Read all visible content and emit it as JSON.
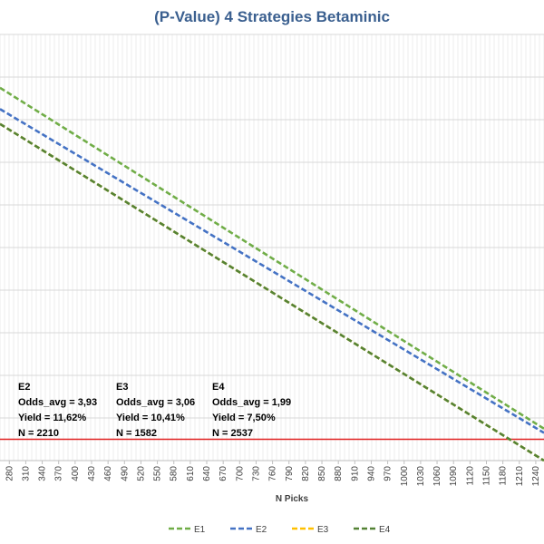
{
  "chart_data": {
    "type": "line",
    "title": "(P-Value) 4 Strategies Betaminic",
    "xlabel": "N Picks",
    "ylabel": "",
    "x_ticks": [
      280,
      310,
      340,
      370,
      400,
      430,
      460,
      490,
      520,
      550,
      580,
      610,
      640,
      670,
      700,
      730,
      760,
      790,
      820,
      850,
      880,
      910,
      940,
      970,
      1000,
      1030,
      1060,
      1090,
      1120,
      1150,
      1180,
      1210,
      1240
    ],
    "xlim": [
      263,
      1255
    ],
    "ylim": [
      0,
      1
    ],
    "threshold_line": {
      "y": 0.05,
      "color": "#e02020"
    },
    "series": [
      {
        "name": "E1",
        "color": "#70ad47",
        "x": [
          263,
          1255
        ],
        "y": [
          0.875,
          0.075
        ]
      },
      {
        "name": "E2",
        "color": "#4472c4",
        "x": [
          263,
          1255
        ],
        "y": [
          0.825,
          0.065
        ]
      },
      {
        "name": "E3",
        "color": "#ffc000",
        "x": [
          263,
          1255
        ],
        "y": [
          0.79,
          0.0
        ]
      },
      {
        "name": "E4",
        "color": "#548235",
        "x": [
          263,
          1255
        ],
        "y": [
          0.79,
          0.0
        ]
      }
    ],
    "stats": [
      {
        "id": "E2",
        "odds": "Odds_avg = 3,93",
        "yield": "Yield = 11,62%",
        "n": "N = 2210"
      },
      {
        "id": "E3",
        "odds": "Odds_avg = 3,06",
        "yield": "Yield = 10,41%",
        "n": "N = 1582"
      },
      {
        "id": "E4",
        "odds": "Odds_avg = 1,99",
        "yield": "Yield = 7,50%",
        "n": "N = 2537"
      }
    ]
  }
}
